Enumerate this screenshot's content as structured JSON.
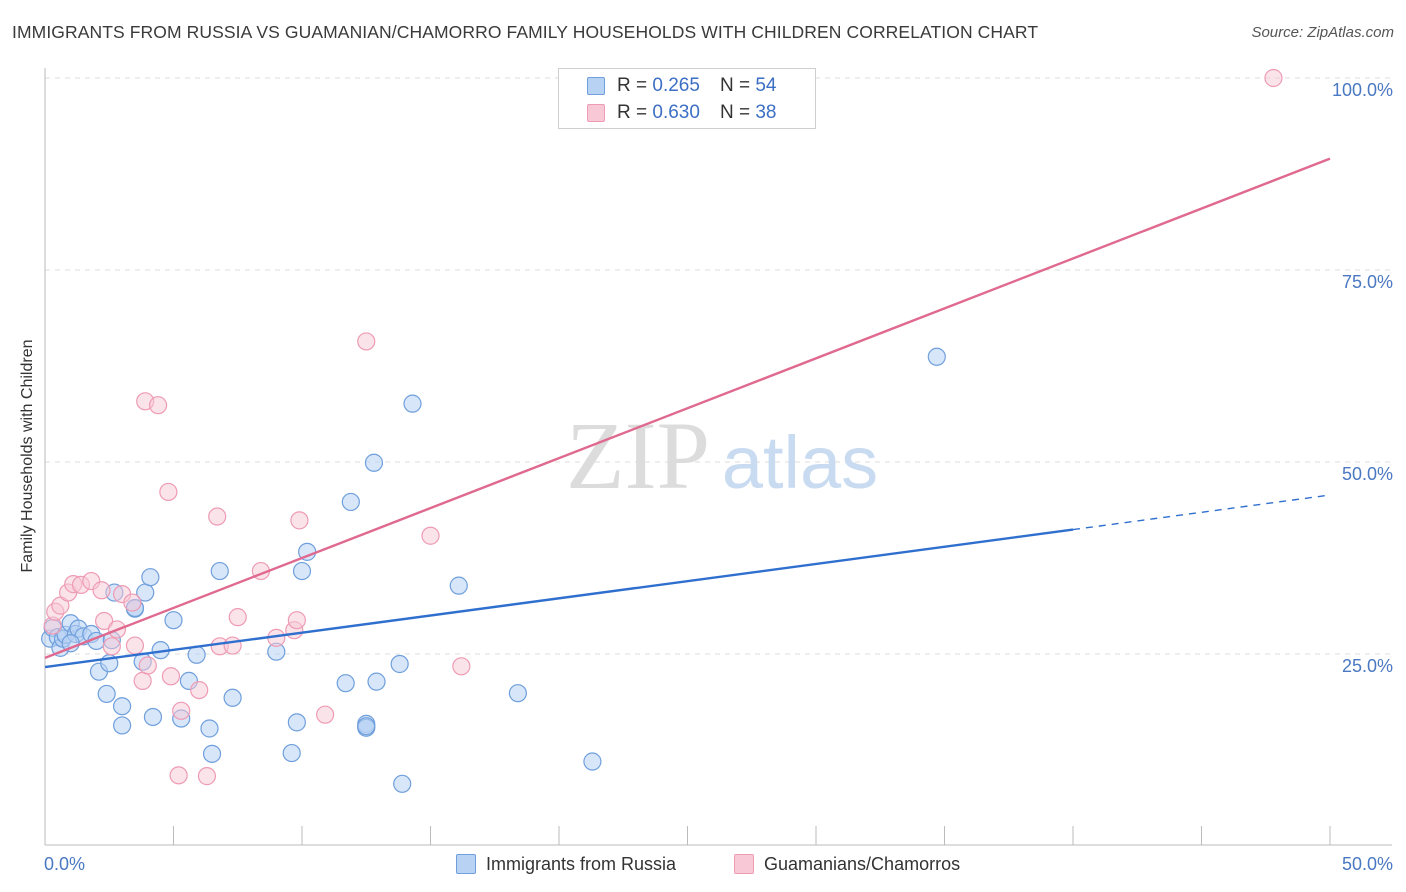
{
  "title": "IMMIGRANTS FROM RUSSIA VS GUAMANIAN/CHAMORRO FAMILY HOUSEHOLDS WITH CHILDREN CORRELATION CHART",
  "source": "Source: ZipAtlas.com",
  "watermark": {
    "zip": "ZIP",
    "atlas": "atlas"
  },
  "colors": {
    "blue_fill": "#b8d2f4",
    "blue_stroke": "#6f9fdc",
    "blue_line": "#2f6fce",
    "pink_fill": "#f8c8d6",
    "pink_stroke": "#ee9bb4",
    "pink_line": "#e0698f",
    "tick_text": "#4a78c2",
    "grid": "#dddddd"
  },
  "legend": {
    "rows": [
      {
        "r_label": "R =",
        "r_value": "0.265",
        "n_label": "N =",
        "n_value": "54"
      },
      {
        "r_label": "R =",
        "r_value": "0.630",
        "n_label": "N =",
        "n_value": "38"
      }
    ]
  },
  "bottom_legend": {
    "items": [
      {
        "label": "Immigrants from Russia"
      },
      {
        "label": "Guamanians/Chamorros"
      }
    ]
  },
  "chart_data": {
    "type": "scatter",
    "title": "IMMIGRANTS FROM RUSSIA VS GUAMANIAN/CHAMORRO FAMILY HOUSEHOLDS WITH CHILDREN CORRELATION CHART",
    "xlabel": "",
    "ylabel": "Family Households with Children",
    "xlim": [
      0,
      50
    ],
    "ylim": [
      0,
      103
    ],
    "x_tick_labels": [
      "0.0%",
      "50.0%"
    ],
    "y_ticks": [
      25,
      50,
      75,
      100
    ],
    "y_tick_labels": [
      "25.0%",
      "50.0%",
      "75.0%",
      "100.0%"
    ],
    "grid": true,
    "legend_position": "top-center",
    "series": [
      {
        "name": "Immigrants from Russia",
        "R": 0.265,
        "N": 54,
        "trend": {
          "x0": 0,
          "y0": 23.3,
          "x1": 40,
          "y1": 41.2,
          "dash_x1": 50,
          "dash_y1": 45.7
        },
        "points": [
          [
            0.2,
            27.0
          ],
          [
            0.3,
            28.4
          ],
          [
            0.5,
            27.2
          ],
          [
            0.6,
            25.8
          ],
          [
            0.7,
            27.0
          ],
          [
            0.8,
            27.5
          ],
          [
            1.0,
            29.0
          ],
          [
            1.2,
            27.6
          ],
          [
            1.3,
            28.3
          ],
          [
            1.5,
            27.3
          ],
          [
            1.8,
            27.6
          ],
          [
            2.0,
            26.7
          ],
          [
            2.1,
            22.7
          ],
          [
            2.4,
            19.8
          ],
          [
            2.5,
            23.8
          ],
          [
            2.6,
            26.8
          ],
          [
            2.7,
            33.0
          ],
          [
            3.0,
            18.2
          ],
          [
            3.0,
            15.7
          ],
          [
            3.5,
            30.9
          ],
          [
            3.5,
            31.0
          ],
          [
            3.8,
            24.0
          ],
          [
            3.9,
            33.0
          ],
          [
            4.1,
            35.0
          ],
          [
            4.2,
            16.8
          ],
          [
            4.5,
            25.5
          ],
          [
            5.0,
            29.4
          ],
          [
            5.3,
            16.6
          ],
          [
            5.6,
            21.5
          ],
          [
            5.9,
            24.9
          ],
          [
            6.4,
            15.3
          ],
          [
            6.5,
            12.0
          ],
          [
            6.8,
            35.8
          ],
          [
            7.3,
            19.3
          ],
          [
            9.0,
            25.3
          ],
          [
            9.6,
            12.1
          ],
          [
            9.8,
            16.1
          ],
          [
            10.0,
            35.8
          ],
          [
            10.2,
            38.3
          ],
          [
            11.7,
            21.2
          ],
          [
            11.9,
            44.8
          ],
          [
            12.5,
            15.9
          ],
          [
            12.5,
            15.4
          ],
          [
            12.9,
            21.4
          ],
          [
            12.8,
            49.9
          ],
          [
            13.8,
            23.7
          ],
          [
            13.9,
            8.1
          ],
          [
            14.3,
            57.6
          ],
          [
            16.1,
            33.9
          ],
          [
            18.4,
            19.9
          ],
          [
            21.3,
            11.0
          ],
          [
            34.7,
            63.7
          ],
          [
            12.5,
            15.6
          ],
          [
            1.0,
            26.4
          ]
        ]
      },
      {
        "name": "Guamanians/Chamorros",
        "R": 0.63,
        "N": 38,
        "trend": {
          "x0": 0,
          "y0": 24.5,
          "x1": 50,
          "y1": 89.5
        },
        "points": [
          [
            0.3,
            28.7
          ],
          [
            0.4,
            30.5
          ],
          [
            0.6,
            31.3
          ],
          [
            0.9,
            33.0
          ],
          [
            1.1,
            34.1
          ],
          [
            1.4,
            34.0
          ],
          [
            1.8,
            34.5
          ],
          [
            2.2,
            33.3
          ],
          [
            2.3,
            29.3
          ],
          [
            2.6,
            26.0
          ],
          [
            2.8,
            28.2
          ],
          [
            3.0,
            32.8
          ],
          [
            3.4,
            31.7
          ],
          [
            3.5,
            26.1
          ],
          [
            3.8,
            21.5
          ],
          [
            3.9,
            57.9
          ],
          [
            4.0,
            23.5
          ],
          [
            4.4,
            57.4
          ],
          [
            4.8,
            46.1
          ],
          [
            4.9,
            22.1
          ],
          [
            5.2,
            9.2
          ],
          [
            5.3,
            17.6
          ],
          [
            6.0,
            20.3
          ],
          [
            6.3,
            9.1
          ],
          [
            6.7,
            42.9
          ],
          [
            6.8,
            26.0
          ],
          [
            7.3,
            26.1
          ],
          [
            7.5,
            29.8
          ],
          [
            8.4,
            35.8
          ],
          [
            9.0,
            27.1
          ],
          [
            9.7,
            28.1
          ],
          [
            9.8,
            29.4
          ],
          [
            9.9,
            42.4
          ],
          [
            10.9,
            17.1
          ],
          [
            12.5,
            65.7
          ],
          [
            15.0,
            40.4
          ],
          [
            16.2,
            23.4
          ],
          [
            47.8,
            100.0
          ]
        ]
      }
    ]
  }
}
